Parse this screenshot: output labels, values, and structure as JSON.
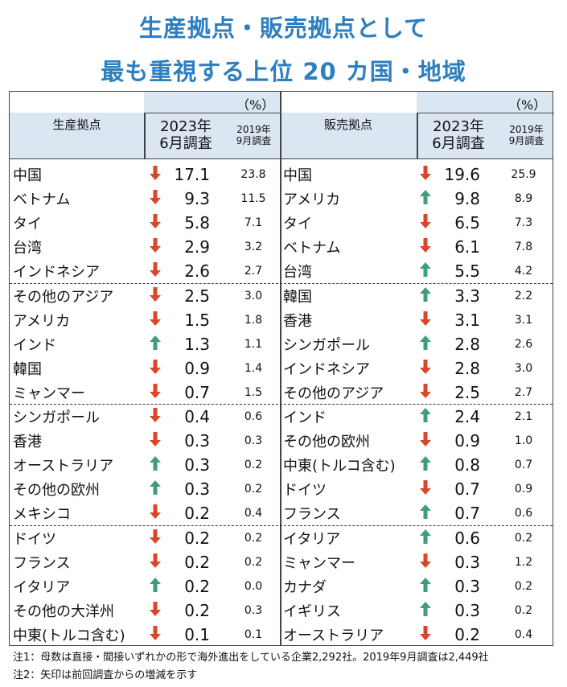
{
  "title_line1": "生産拠点・販売拠点として",
  "title_line2": "最も重視する上位 20 カ国・地域",
  "unit": "（%）",
  "left_header": "生産拠点",
  "right_header": "販売拠点",
  "col_2023_line1": "2023年",
  "col_2023_line2": "6月調査",
  "col_2019_line1": "2019年",
  "col_2019_line2": "9月調査",
  "colors": {
    "title": "#2e7fbf",
    "down": "#d9472b",
    "up": "#3f9e7a",
    "header_bg": "#dbe6f3"
  },
  "chart_data": {
    "type": "table",
    "title": "生産拠点・販売拠点として最も重視する上位 20 カ国・地域",
    "unit": "%",
    "production": [
      {
        "name": "中国",
        "v2023": "17.1",
        "v2019": "23.8",
        "trend": "down"
      },
      {
        "name": "ベトナム",
        "v2023": "9.3",
        "v2019": "11.5",
        "trend": "down"
      },
      {
        "name": "タイ",
        "v2023": "5.8",
        "v2019": "7.1",
        "trend": "down"
      },
      {
        "name": "台湾",
        "v2023": "2.9",
        "v2019": "3.2",
        "trend": "down"
      },
      {
        "name": "インドネシア",
        "v2023": "2.6",
        "v2019": "2.7",
        "trend": "down"
      },
      {
        "name": "その他のアジア",
        "v2023": "2.5",
        "v2019": "3.0",
        "trend": "down"
      },
      {
        "name": "アメリカ",
        "v2023": "1.5",
        "v2019": "1.8",
        "trend": "down"
      },
      {
        "name": "インド",
        "v2023": "1.3",
        "v2019": "1.1",
        "trend": "up"
      },
      {
        "name": "韓国",
        "v2023": "0.9",
        "v2019": "1.4",
        "trend": "down"
      },
      {
        "name": "ミャンマー",
        "v2023": "0.7",
        "v2019": "1.5",
        "trend": "down"
      },
      {
        "name": "シンガポール",
        "v2023": "0.4",
        "v2019": "0.6",
        "trend": "down"
      },
      {
        "name": "香港",
        "v2023": "0.3",
        "v2019": "0.3",
        "trend": "down"
      },
      {
        "name": "オーストラリア",
        "v2023": "0.3",
        "v2019": "0.2",
        "trend": "up"
      },
      {
        "name": "その他の欧州",
        "v2023": "0.3",
        "v2019": "0.2",
        "trend": "up"
      },
      {
        "name": "メキシコ",
        "v2023": "0.2",
        "v2019": "0.4",
        "trend": "down"
      },
      {
        "name": "ドイツ",
        "v2023": "0.2",
        "v2019": "0.2",
        "trend": "down"
      },
      {
        "name": "フランス",
        "v2023": "0.2",
        "v2019": "0.2",
        "trend": "down"
      },
      {
        "name": "イタリア",
        "v2023": "0.2",
        "v2019": "0.0",
        "trend": "up"
      },
      {
        "name": "その他の大洋州",
        "v2023": "0.2",
        "v2019": "0.3",
        "trend": "down"
      },
      {
        "name": "中東(トルコ含む)",
        "v2023": "0.1",
        "v2019": "0.1",
        "trend": "down"
      }
    ],
    "sales": [
      {
        "name": "中国",
        "v2023": "19.6",
        "v2019": "25.9",
        "trend": "down"
      },
      {
        "name": "アメリカ",
        "v2023": "9.8",
        "v2019": "8.9",
        "trend": "up"
      },
      {
        "name": "タイ",
        "v2023": "6.5",
        "v2019": "7.3",
        "trend": "down"
      },
      {
        "name": "ベトナム",
        "v2023": "6.1",
        "v2019": "7.8",
        "trend": "down"
      },
      {
        "name": "台湾",
        "v2023": "5.5",
        "v2019": "4.2",
        "trend": "up"
      },
      {
        "name": "韓国",
        "v2023": "3.3",
        "v2019": "2.2",
        "trend": "up"
      },
      {
        "name": "香港",
        "v2023": "3.1",
        "v2019": "3.1",
        "trend": "down"
      },
      {
        "name": "シンガポール",
        "v2023": "2.8",
        "v2019": "2.6",
        "trend": "up"
      },
      {
        "name": "インドネシア",
        "v2023": "2.8",
        "v2019": "3.0",
        "trend": "down"
      },
      {
        "name": "その他のアジア",
        "v2023": "2.5",
        "v2019": "2.7",
        "trend": "down"
      },
      {
        "name": "インド",
        "v2023": "2.4",
        "v2019": "2.1",
        "trend": "up"
      },
      {
        "name": "その他の欧州",
        "v2023": "0.9",
        "v2019": "1.0",
        "trend": "down"
      },
      {
        "name": "中東(トルコ含む)",
        "v2023": "0.8",
        "v2019": "0.7",
        "trend": "up"
      },
      {
        "name": "ドイツ",
        "v2023": "0.7",
        "v2019": "0.9",
        "trend": "down"
      },
      {
        "name": "フランス",
        "v2023": "0.7",
        "v2019": "0.6",
        "trend": "up"
      },
      {
        "name": "イタリア",
        "v2023": "0.6",
        "v2019": "0.2",
        "trend": "up"
      },
      {
        "name": "ミャンマー",
        "v2023": "0.3",
        "v2019": "1.2",
        "trend": "down"
      },
      {
        "name": "カナダ",
        "v2023": "0.3",
        "v2019": "0.2",
        "trend": "up"
      },
      {
        "name": "イギリス",
        "v2023": "0.3",
        "v2019": "0.2",
        "trend": "up"
      },
      {
        "name": "オーストラリア",
        "v2023": "0.2",
        "v2019": "0.4",
        "trend": "down"
      }
    ]
  },
  "note1": "注1：母数は直接・間接いずれかの形で海外進出をしている企業2,292社。2019年9月調査は2,449社",
  "note2": "注2：矢印は前回調査からの増減を示す"
}
